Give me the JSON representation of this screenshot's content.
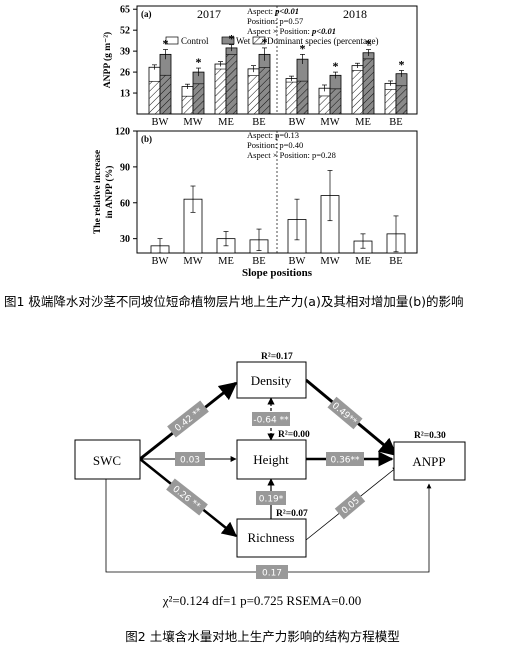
{
  "figure1": {
    "caption": "图1 极端降水对沙茎不同坡位短命植物层片地上生产力(a)及其相对增加量(b)的影响",
    "xlabel": "Slope positions",
    "panel_a": {
      "label": "(a)",
      "ylabel": "ANPP (g m⁻²)",
      "yticks": [
        13,
        26,
        39,
        52,
        65
      ],
      "ylim": [
        0,
        67
      ],
      "years": [
        "2017",
        "2018"
      ],
      "stats": {
        "aspect_prefix": "Aspect: ",
        "aspect_val": "p<0.01",
        "position_text": "Position: p=0.57",
        "interaction_prefix": "Aspect × Position: ",
        "interaction_val": "p<0.01"
      },
      "legend": {
        "control": "Control",
        "wet": "Wet",
        "dominant": "Dominant species (percentage)"
      },
      "colors": {
        "control": "#ffffff",
        "wet": "#8a8a8a"
      }
    },
    "panel_b": {
      "label": "(b)",
      "ylabel_line1": "The relative increase",
      "ylabel_line2": "in ANPP (%)",
      "yticks": [
        30,
        60,
        90,
        120
      ],
      "ylim": [
        18,
        120
      ],
      "stats": {
        "aspect": "Aspect: p=0.13",
        "position": "Position: p=0.40",
        "interaction": "Aspect × Position: p=0.28"
      }
    },
    "chart_data": [
      {
        "type": "bar",
        "panel": "a",
        "categories": [
          "BW",
          "MW",
          "ME",
          "BE",
          "BW",
          "MW",
          "ME",
          "BE"
        ],
        "groups": [
          "2017",
          "2017",
          "2017",
          "2017",
          "2018",
          "2018",
          "2018",
          "2018"
        ],
        "series": [
          {
            "name": "Control",
            "values": [
              29,
              17,
              31,
              28,
              22,
              16,
              30,
              19
            ],
            "errors": [
              1.5,
              1.5,
              1.5,
              2,
              1.5,
              2,
              1.5,
              1.5
            ],
            "dominant_fraction": [
              0.7,
              0.65,
              0.9,
              0.85,
              0.9,
              0.7,
              0.9,
              0.8
            ],
            "significance": [
              "",
              "",
              "",
              "",
              "",
              "",
              "",
              ""
            ]
          },
          {
            "name": "Wet",
            "values": [
              37,
              26,
              41,
              37,
              34,
              24,
              38,
              25
            ],
            "errors": [
              3,
              2.5,
              2,
              4,
              3,
              2,
              2,
              2
            ],
            "dominant_fraction": [
              0.65,
              0.72,
              0.9,
              0.78,
              0.6,
              0.65,
              0.9,
              0.7
            ],
            "significance": [
              "*",
              "*",
              "*",
              "*",
              "*",
              "*",
              "*",
              "*"
            ]
          }
        ],
        "ylabel": "ANPP (g m⁻²)",
        "ylim": [
          0,
          67
        ]
      },
      {
        "type": "bar",
        "panel": "b",
        "categories": [
          "BW",
          "MW",
          "ME",
          "BE",
          "BW",
          "MW",
          "ME",
          "BE"
        ],
        "series": [
          {
            "name": "",
            "values": [
              24,
              63,
              30,
              29,
              46,
              66,
              28,
              34
            ],
            "errors": [
              6,
              11,
              6,
              9,
              17,
              21,
              6,
              15
            ]
          }
        ],
        "ylabel": "The relative increase in ANPP (%)",
        "ylim": [
          18,
          120
        ]
      }
    ]
  },
  "figure2": {
    "caption": "图2 土壤含水量对地上生产力影响的结构方程模型",
    "nodes": {
      "swc": "SWC",
      "density": "Density",
      "height": "Height",
      "richness": "Richness",
      "anpp": "ANPP"
    },
    "r2": {
      "density": "R²=0.17",
      "height": "R²=0.00",
      "richness": "R²=0.07",
      "anpp": "R²=0.30"
    },
    "coefficients": {
      "swc_density": "0.42 **",
      "swc_height": "0.03",
      "swc_richness": "0.26 **",
      "density_anpp": "0.49**",
      "height_anpp": "0.36**",
      "richness_anpp": "0.05",
      "density_height": "-0.64 **",
      "richness_height": "0.19*",
      "swc_anpp": "0.17"
    },
    "fit_stats": "χ²=0.124 df=1  p=0.725  RSEMA=0.00"
  }
}
